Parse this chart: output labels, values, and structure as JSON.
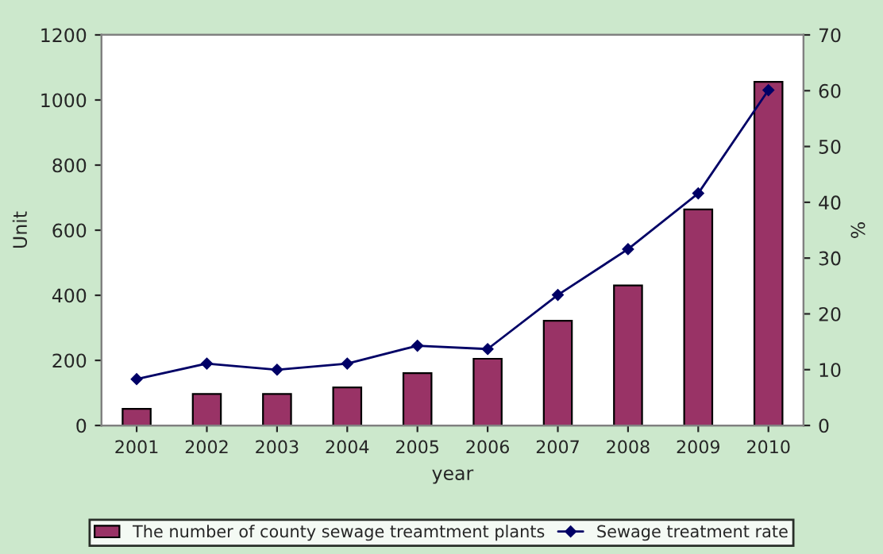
{
  "chart_data": {
    "type": "bar",
    "xlabel": "year",
    "ylabel": "Unit",
    "y2label": "%",
    "categories": [
      "2001",
      "2002",
      "2003",
      "2004",
      "2005",
      "2006",
      "2007",
      "2008",
      "2009",
      "2010"
    ],
    "series": [
      {
        "name": "The number of county sewage treamtment plants",
        "color": "#993366",
        "values": [
          51,
          97,
          97,
          117,
          161,
          205,
          322,
          430,
          664,
          1056
        ]
      },
      {
        "name": "Sewage treatment rate",
        "color": "#000066",
        "type": "line",
        "axis": "y2",
        "marker": "diamond",
        "values": [
          8.3,
          11.1,
          10.0,
          11.1,
          14.3,
          13.7,
          23.4,
          31.6,
          41.6,
          60.1
        ]
      }
    ],
    "ylim": [
      0,
      1200
    ],
    "yticks": [
      0,
      200,
      400,
      600,
      800,
      1000,
      1200
    ],
    "y2lim": [
      0,
      70
    ],
    "y2ticks": [
      0,
      10,
      20,
      30,
      40,
      50,
      60,
      70
    ],
    "grid": false,
    "legend": "bottom"
  }
}
